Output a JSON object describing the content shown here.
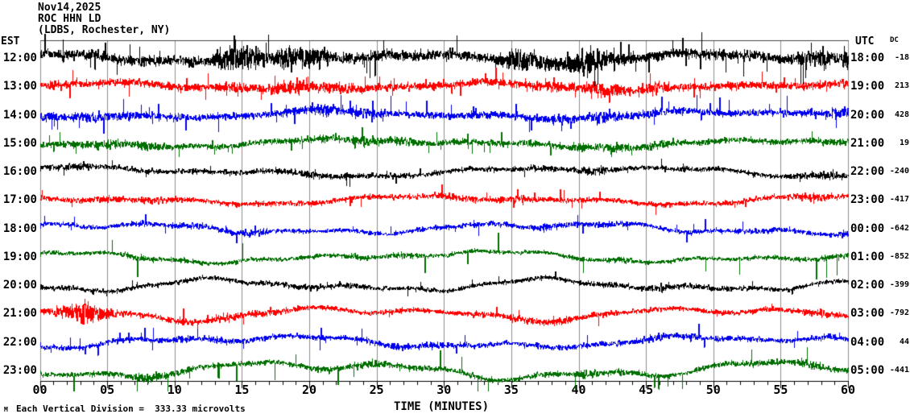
{
  "header": {
    "date": "Nov14,2025",
    "station": "ROC HHN LD",
    "location": "(LDBS, Rochester, NY)"
  },
  "axes": {
    "left_label": "EST",
    "right_label": "UTC",
    "dc_label": "DC",
    "x_title": "TIME (MINUTES)",
    "x_ticks": [
      "00",
      "05",
      "10",
      "15",
      "20",
      "25",
      "30",
      "35",
      "40",
      "45",
      "50",
      "55",
      "60"
    ]
  },
  "footer": {
    "scale_note": "Each Vertical Division =  333.33 microvolts",
    "corner_glyph": "M"
  },
  "colors": {
    "trace_black": "#000000",
    "trace_red": "#ff0000",
    "trace_blue": "#0000ee",
    "trace_green": "#006e00",
    "gridline": "#8c8c8c",
    "frame": "#444444",
    "axis": "#000000",
    "background": "#ffffff",
    "text": "#000000"
  },
  "chart_data": {
    "type": "line",
    "subtype": "helicorder-seismogram",
    "title": "ROC HHN LD (LDBS, Rochester, NY) Nov14,2025",
    "xlabel": "TIME (MINUTES)",
    "x_range": [
      0,
      60
    ],
    "x_tick_interval_minutes": 5,
    "minor_tick_interval_minutes": 1,
    "grid": "vertical gray gridlines every 5 minutes, top frame line, bottom axis with ticks",
    "legend_position": "none",
    "rows_are_hours": true,
    "vertical_division": "333.33 microvolts",
    "rows": [
      {
        "est": "12:00",
        "utc": "18:00",
        "dc": -18,
        "color": "#000000",
        "activity": "very high continuous noise, saturating above plot top",
        "render": {
          "noise": 11,
          "burst": 2.8,
          "wander": 7,
          "spikeRate": 0.05,
          "spikeAmp": 26,
          "seed": 11,
          "spikeBias": 0.5
        }
      },
      {
        "est": "13:00",
        "utc": "19:00",
        "dc": 213,
        "color": "#ff0000",
        "activity": "high continuous noise",
        "render": {
          "noise": 8.5,
          "burst": 2.0,
          "wander": 6,
          "spikeRate": 0.04,
          "spikeAmp": 18,
          "seed": 22,
          "spikeBias": 0.5
        }
      },
      {
        "est": "14:00",
        "utc": "20:00",
        "dc": 428,
        "color": "#0000ee",
        "activity": "high noise with long vertical excursions",
        "render": {
          "noise": 7.5,
          "burst": 1.9,
          "wander": 7,
          "spikeRate": 0.05,
          "spikeAmp": 20,
          "seed": 33,
          "spikeBias": 0.5
        }
      },
      {
        "est": "15:00",
        "utc": "21:00",
        "dc": 19,
        "color": "#006e00",
        "activity": "moderately high noise",
        "render": {
          "noise": 6.5,
          "burst": 1.8,
          "wander": 7,
          "spikeRate": 0.03,
          "spikeAmp": 16,
          "seed": 44,
          "spikeBias": 0.5
        }
      },
      {
        "est": "16:00",
        "utc": "22:00",
        "dc": -240,
        "color": "#000000",
        "activity": "moderate noise with slow wander",
        "render": {
          "noise": 5.5,
          "burst": 1.6,
          "wander": 8,
          "spikeRate": 0.02,
          "spikeAmp": 12,
          "seed": 55,
          "spikeBias": 0.5
        }
      },
      {
        "est": "17:00",
        "utc": "23:00",
        "dc": -417,
        "color": "#ff0000",
        "activity": "moderate noise with bursts",
        "render": {
          "noise": 5.5,
          "burst": 1.6,
          "wander": 7,
          "spikeRate": 0.02,
          "spikeAmp": 13,
          "seed": 66,
          "spikeBias": 0.5
        }
      },
      {
        "est": "18:00",
        "utc": "00:00",
        "dc": -642,
        "color": "#0000ee",
        "activity": "moderate noise, slow wander",
        "render": {
          "noise": 5,
          "burst": 1.6,
          "wander": 9,
          "spikeRate": 0.02,
          "spikeAmp": 14,
          "seed": 77,
          "spikeBias": 0.5
        }
      },
      {
        "est": "19:00",
        "utc": "01:00",
        "dc": -852,
        "color": "#006e00",
        "activity": "low noise with occasional tall spikes",
        "render": {
          "noise": 4.5,
          "burst": 1.5,
          "wander": 9,
          "spikeRate": 0.012,
          "spikeAmp": 30,
          "seed": 88,
          "spikeBias": 0.75
        }
      },
      {
        "est": "20:00",
        "utc": "02:00",
        "dc": -399,
        "color": "#000000",
        "activity": "moderate noise, large slow wander",
        "render": {
          "noise": 5,
          "burst": 1.5,
          "wander": 10,
          "spikeRate": 0.015,
          "spikeAmp": 12,
          "seed": 99,
          "spikeBias": 0.5
        }
      },
      {
        "est": "21:00",
        "utc": "03:00",
        "dc": -792,
        "color": "#ff0000",
        "activity": "wandering trace with large red burst near minutes 1-5",
        "render": {
          "noise": 5.5,
          "burst": 1.7,
          "wander": 11,
          "spikeRate": 0.015,
          "spikeAmp": 14,
          "seed": 110,
          "spikeBias": 0.5,
          "blob": {
            "pos": 0.055,
            "width": 0.035,
            "amp": 16
          }
        }
      },
      {
        "est": "22:00",
        "utc": "04:00",
        "dc": 44,
        "color": "#0000ee",
        "activity": "wandering noisy trace overlapping 21:00 row",
        "render": {
          "noise": 5.5,
          "burst": 1.6,
          "wander": 10,
          "spikeRate": 0.025,
          "spikeAmp": 16,
          "seed": 121,
          "spikeBias": 0.5
        }
      },
      {
        "est": "23:00",
        "utc": "05:00",
        "dc": -441,
        "color": "#006e00",
        "activity": "large slow oscillations with spikes crossing below the axis",
        "render": {
          "noise": 5.5,
          "burst": 1.8,
          "wander": 14,
          "spikeRate": 0.025,
          "spikeAmp": 22,
          "seed": 132,
          "spikeBias": 0.7
        }
      }
    ]
  }
}
